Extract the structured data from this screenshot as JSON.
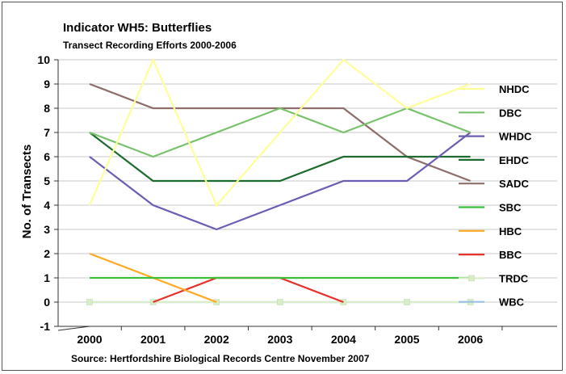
{
  "chart_data": {
    "type": "line",
    "title": "Indicator WH5: Butterflies",
    "subtitle": "Transect Recording Efforts 2000-2006",
    "xlabel": "",
    "ylabel": "No. of Transects",
    "source": "Source: Hertfordshire Biological Records Centre November 2007",
    "categories": [
      "2000",
      "2001",
      "2002",
      "2003",
      "2004",
      "2005",
      "2006"
    ],
    "ylim": [
      -1,
      10
    ],
    "yticks": [
      "-1",
      "0",
      "1",
      "2",
      "3",
      "4",
      "5",
      "6",
      "7",
      "8",
      "9",
      "10"
    ],
    "grid": "horizontal",
    "legend": "right",
    "series": [
      {
        "name": "NHDC",
        "color": "#ffff99",
        "values": [
          4,
          10,
          4,
          7,
          10,
          8,
          9
        ]
      },
      {
        "name": "DBC",
        "color": "#77c26a",
        "values": [
          7,
          6,
          7,
          8,
          7,
          8,
          7
        ]
      },
      {
        "name": "WHDC",
        "color": "#6c5cb4",
        "values": [
          6,
          4,
          3,
          4,
          5,
          5,
          7
        ]
      },
      {
        "name": "EHDC",
        "color": "#1d6b2e",
        "values": [
          7,
          5,
          5,
          5,
          6,
          6,
          6
        ]
      },
      {
        "name": "SADC",
        "color": "#8f6d6a",
        "values": [
          9,
          8,
          8,
          8,
          8,
          6,
          5
        ]
      },
      {
        "name": "SBC",
        "color": "#3bbf3b",
        "values": [
          1,
          1,
          1,
          1,
          1,
          1,
          1
        ]
      },
      {
        "name": "HBC",
        "color": "#ffaa22",
        "values": [
          2,
          1,
          0,
          null,
          null,
          null,
          null
        ]
      },
      {
        "name": "BBC",
        "color": "#e8302a",
        "values": [
          null,
          0,
          1,
          1,
          0,
          null,
          null
        ]
      },
      {
        "name": "TRDC",
        "color": "#d8edc8",
        "marker": "square",
        "values": [
          0,
          0,
          0,
          0,
          0,
          0,
          0
        ]
      },
      {
        "name": "WBC",
        "color": "#9bc0e6",
        "values": [
          0,
          0,
          0,
          0,
          0,
          0,
          0
        ]
      }
    ]
  }
}
